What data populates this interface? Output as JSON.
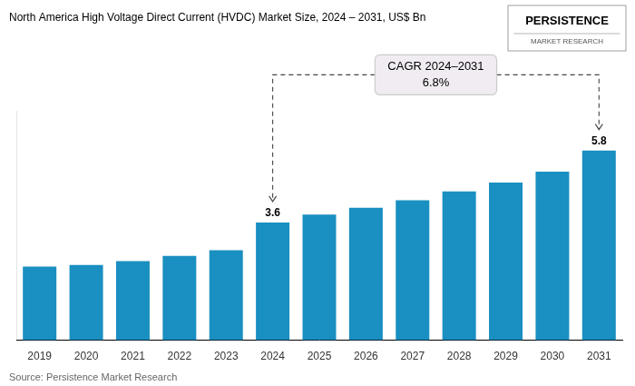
{
  "chart_data": {
    "type": "bar",
    "title": "North America High Voltage Direct Current (HVDC) Market Size, 2024 – 2031, US$ Bn",
    "categories": [
      "2019",
      "2020",
      "2021",
      "2022",
      "2023",
      "2024",
      "2025",
      "2026",
      "2027",
      "2028",
      "2029",
      "2030",
      "2031"
    ],
    "values": [
      2.25,
      2.3,
      2.42,
      2.58,
      2.75,
      3.6,
      3.84,
      4.05,
      4.28,
      4.55,
      4.82,
      5.15,
      5.8
    ],
    "color": "#1a8fc1",
    "ylim": [
      0,
      7.0
    ],
    "grid": false,
    "tick_labels": "x",
    "data_labels": true,
    "value_labels": [
      null,
      null,
      null,
      null,
      null,
      "3.6",
      null,
      null,
      null,
      null,
      null,
      null,
      "5.8"
    ],
    "annotations": [
      "CAGR 2024–2031",
      "6.8%",
      "Source: Persistence Market Research",
      "PERSISTENCE",
      "MARKET RESEARCH"
    ]
  }
}
